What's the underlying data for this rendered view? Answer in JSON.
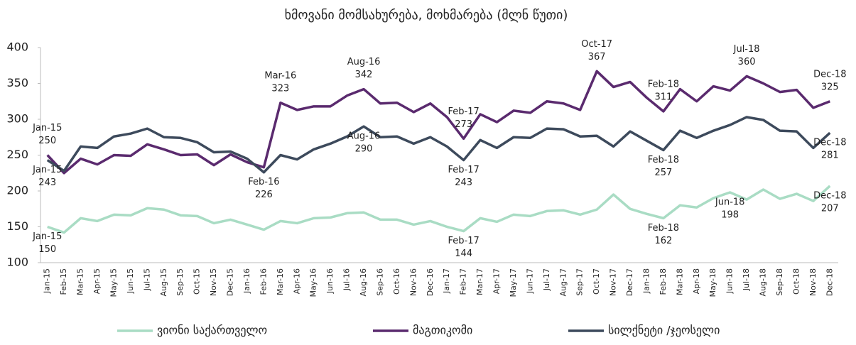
{
  "chart_data": {
    "type": "line",
    "title": "ხმოვანი მომსახურება, მოხმარება (მლნ წუთი)",
    "categories": [
      "Jan-15",
      "Feb-15",
      "Mar-15",
      "Apr-15",
      "May-15",
      "Jun-15",
      "Jul-15",
      "Aug-15",
      "Sep-15",
      "Oct-15",
      "Nov-15",
      "Dec-15",
      "Jan-16",
      "Feb-16",
      "Mar-16",
      "Apr-16",
      "May-16",
      "Jun-16",
      "Jul-16",
      "Aug-16",
      "Sep-16",
      "Oct-16",
      "Nov-16",
      "Dec-16",
      "Jan-17",
      "Feb-17",
      "Mar-17",
      "Apr-17",
      "May-17",
      "Jun-17",
      "Jul-17",
      "Aug-17",
      "Sep-17",
      "Oct-17",
      "Nov-17",
      "Dec-17",
      "Jan-18",
      "Feb-18",
      "Mar-18",
      "Apr-18",
      "May-18",
      "Jun-18",
      "Jul-18",
      "Aug-18",
      "Sep-18",
      "Oct-18",
      "Nov-18",
      "Dec-18"
    ],
    "series": [
      {
        "name": "ვიონი საქართველო",
        "color": "#a9dcc4",
        "label_position": "below",
        "annotated_points": [
          0,
          25,
          37,
          41,
          47
        ],
        "values": [
          150,
          142,
          162,
          158,
          167,
          166,
          176,
          174,
          166,
          165,
          155,
          160,
          153,
          146,
          158,
          155,
          162,
          163,
          169,
          170,
          160,
          160,
          153,
          158,
          150,
          144,
          162,
          157,
          167,
          165,
          172,
          173,
          167,
          174,
          195,
          175,
          168,
          162,
          180,
          177,
          190,
          198,
          188,
          202,
          189,
          196,
          186,
          207
        ]
      },
      {
        "name": "მაგთიკომი",
        "color": "#5a2a6e",
        "label_position": "above",
        "annotated_points": [
          0,
          14,
          19,
          25,
          33,
          37,
          42,
          47
        ],
        "values": [
          250,
          225,
          245,
          237,
          250,
          249,
          265,
          258,
          250,
          251,
          236,
          251,
          240,
          233,
          323,
          313,
          318,
          318,
          333,
          342,
          322,
          323,
          310,
          322,
          303,
          273,
          307,
          296,
          312,
          309,
          325,
          322,
          313,
          367,
          345,
          352,
          330,
          311,
          342,
          325,
          346,
          340,
          360,
          350,
          338,
          341,
          316,
          325
        ]
      },
      {
        "name": "სილქნეტი /ჯეოსელი",
        "color": "#3d4a5c",
        "label_position": "below",
        "annotated_points": [
          0,
          13,
          19,
          25,
          37,
          47
        ],
        "values": [
          243,
          228,
          262,
          260,
          276,
          280,
          287,
          275,
          274,
          268,
          254,
          255,
          245,
          226,
          250,
          244,
          258,
          266,
          276,
          290,
          275,
          276,
          266,
          275,
          262,
          243,
          271,
          260,
          275,
          274,
          287,
          286,
          276,
          277,
          262,
          283,
          270,
          257,
          284,
          274,
          284,
          292,
          303,
          299,
          284,
          283,
          260,
          281
        ]
      }
    ],
    "ylim": [
      100,
      400
    ],
    "yticks": [
      100,
      150,
      200,
      250,
      300,
      350,
      400
    ],
    "grid": false,
    "legend": "bottom"
  }
}
